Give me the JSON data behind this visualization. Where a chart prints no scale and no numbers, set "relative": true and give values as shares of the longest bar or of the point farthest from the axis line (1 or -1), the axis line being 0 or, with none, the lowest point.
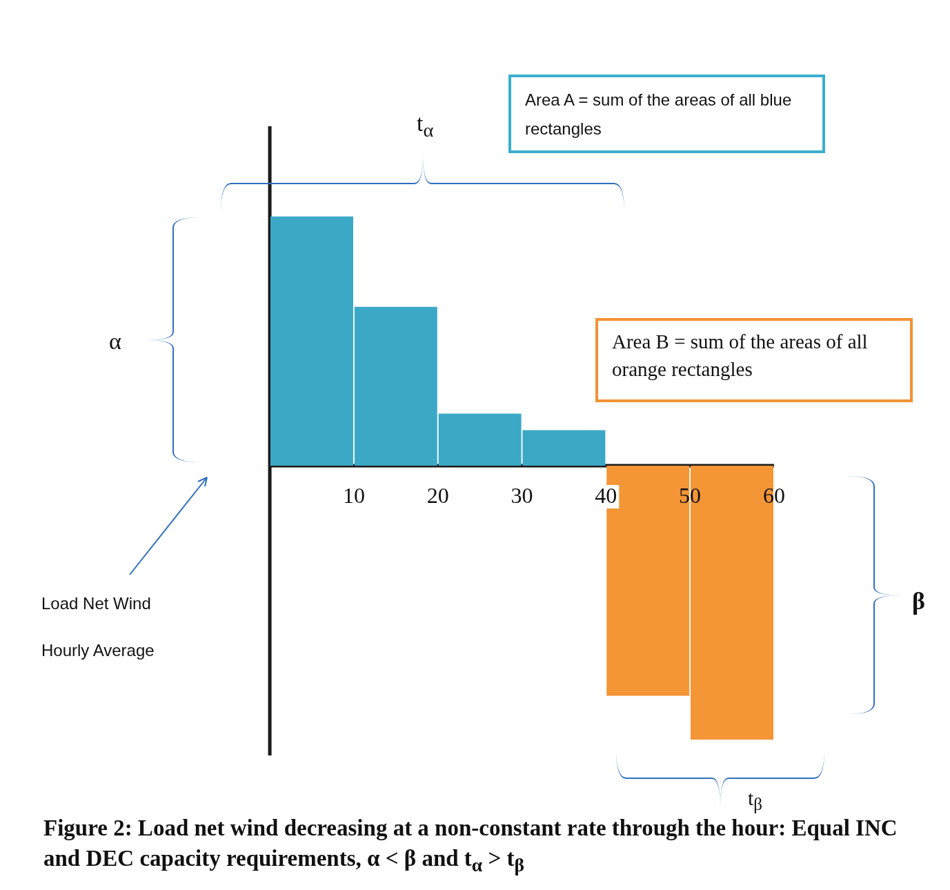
{
  "chart_data": {
    "type": "bar",
    "relative": true,
    "title": "Figure 2: Load net wind decreasing at a non-constant rate through the hour: Equal INC and DEC capacity requirements, α < β and t$_{α}$ > t$_{β}$",
    "x": [
      5,
      15,
      25,
      35,
      45,
      55
    ],
    "values": [
      0.91,
      0.58,
      0.19,
      0.13,
      -0.84,
      -1
    ],
    "colors": [
      "#3ba9c6",
      "#3ba9c6",
      "#3ba9c6",
      "#3ba9c6",
      "#f49536",
      "#f49536"
    ],
    "xlim": [
      0,
      60
    ],
    "xticks": [
      10,
      20,
      30,
      40,
      50,
      60
    ],
    "annotations": [
      "Area A = sum of the areas of all blue rectangles",
      "Area B = sum of the areas of all orange rectangles",
      "t$_{α}$",
      "α",
      "β",
      "t$_{β}$",
      "Load Net Wind",
      "Hourly Average"
    ]
  }
}
